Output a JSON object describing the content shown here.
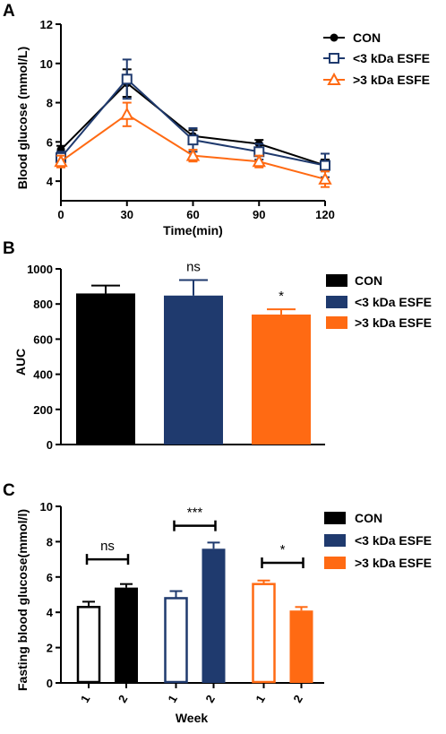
{
  "colors": {
    "con": "#000000",
    "lt3": "#1f3a6e",
    "gt3": "#ff6a13"
  },
  "chart_data": [
    {
      "panel": "A",
      "type": "line",
      "xlabel": "Time(min)",
      "ylabel": "Blood glucose (mmol/L)",
      "x": [
        0,
        30,
        60,
        90,
        120
      ],
      "xticks": [
        "0",
        "30",
        "60",
        "90",
        "120"
      ],
      "yticks": [
        "4",
        "6",
        "8",
        "10",
        "12"
      ],
      "xlim": [
        0,
        120
      ],
      "ylim": [
        3,
        12
      ],
      "legend_position": "right",
      "series": [
        {
          "name": "CON",
          "marker": "filled-circle",
          "values": [
            5.6,
            9.0,
            6.3,
            5.9,
            4.8
          ],
          "errors": [
            0.2,
            0.7,
            0.3,
            0.2,
            0.3
          ]
        },
        {
          "name": "<3 kDa ESFE",
          "marker": "open-square",
          "values": [
            5.2,
            9.2,
            6.1,
            5.5,
            4.8
          ],
          "errors": [
            0.3,
            1.0,
            0.6,
            0.4,
            0.6
          ]
        },
        {
          "name": ">3 kDa ESFE",
          "marker": "open-triangle",
          "values": [
            5.0,
            7.4,
            5.3,
            5.0,
            4.1
          ],
          "errors": [
            0.3,
            0.6,
            0.3,
            0.3,
            0.4
          ]
        }
      ]
    },
    {
      "panel": "B",
      "type": "bar",
      "ylabel": "AUC",
      "categories": [
        "CON",
        "<3 kDa ESFE",
        ">3 kDa ESFE"
      ],
      "values": [
        860,
        848,
        740
      ],
      "errors": [
        45,
        88,
        30
      ],
      "annotations": [
        "",
        "ns",
        "*"
      ],
      "yticks": [
        "0",
        "200",
        "400",
        "600",
        "800",
        "1000"
      ],
      "ylim": [
        0,
        1000
      ],
      "legend_position": "right",
      "legend": [
        "CON",
        "<3 kDa ESFE",
        ">3 kDa ESFE"
      ]
    },
    {
      "panel": "C",
      "type": "bar",
      "xlabel": "Week",
      "ylabel": "Fasting blood glucose(mmol/l)",
      "ylim": [
        0,
        10
      ],
      "yticks": [
        "0",
        "2",
        "4",
        "6",
        "8",
        "10"
      ],
      "groups": [
        {
          "name": "CON",
          "bars": [
            {
              "week": "1",
              "value": 4.3,
              "error": 0.3,
              "fill": "open"
            },
            {
              "week": "2",
              "value": 5.4,
              "error": 0.2,
              "fill": "solid"
            }
          ],
          "significance": "ns",
          "bracket_value": 7.0
        },
        {
          "name": "<3 kDa ESFE",
          "bars": [
            {
              "week": "1",
              "value": 4.8,
              "error": 0.4,
              "fill": "open"
            },
            {
              "week": "2",
              "value": 7.6,
              "error": 0.35,
              "fill": "solid"
            }
          ],
          "significance": "***",
          "bracket_value": 8.9
        },
        {
          "name": ">3 kDa ESFE",
          "bars": [
            {
              "week": "1",
              "value": 5.6,
              "error": 0.2,
              "fill": "open"
            },
            {
              "week": "2",
              "value": 4.1,
              "error": 0.2,
              "fill": "solid"
            }
          ],
          "significance": "*",
          "bracket_value": 6.8
        }
      ],
      "legend_position": "right",
      "legend": [
        "CON",
        "<3 kDa ESFE",
        ">3 kDa ESFE"
      ]
    }
  ]
}
